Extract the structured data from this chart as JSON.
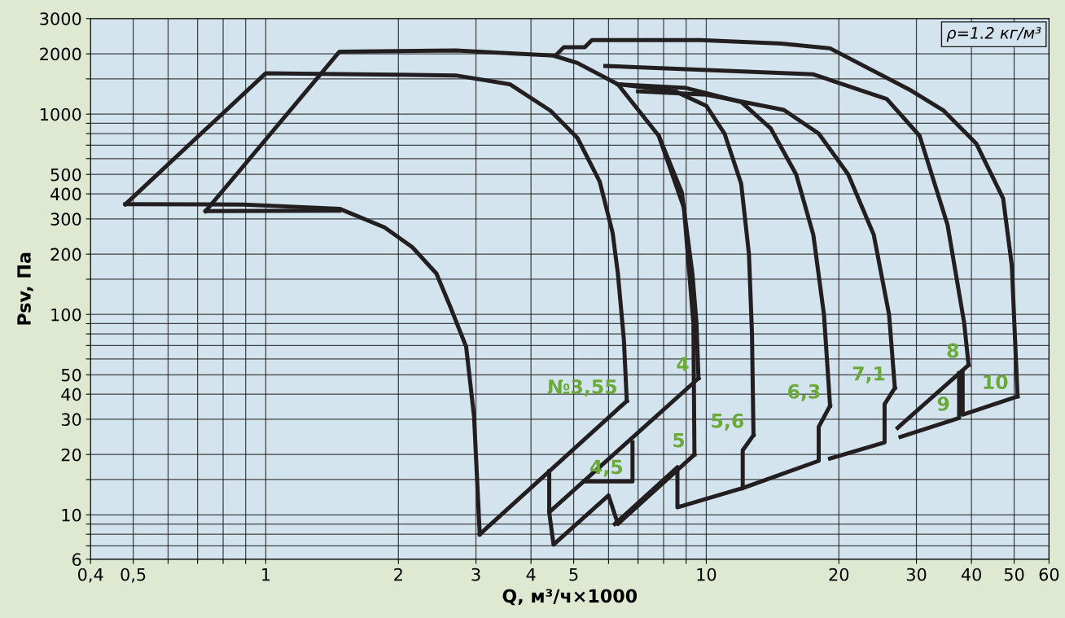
{
  "chart_data": {
    "type": "line",
    "xlabel": "Q, м³/ч×1000",
    "ylabel": "Psv, Па",
    "log": "xy",
    "grid": true,
    "marker": "none",
    "line_style": "solid",
    "xlim": [
      0.4,
      60
    ],
    "ylim": [
      6,
      3000
    ],
    "xticks": [
      {
        "value": 0.4,
        "label": "0,4"
      },
      {
        "value": 0.5,
        "label": "0,5"
      },
      {
        "value": 0.6,
        "label": null
      },
      {
        "value": 0.7,
        "label": null
      },
      {
        "value": 0.8,
        "label": null
      },
      {
        "value": 0.9,
        "label": null
      },
      1,
      2,
      3,
      4,
      5,
      {
        "value": 6,
        "label": null
      },
      {
        "value": 7,
        "label": null
      },
      {
        "value": 8,
        "label": null
      },
      {
        "value": 9,
        "label": null
      },
      10,
      20,
      30,
      40,
      50,
      60
    ],
    "yticks": [
      6,
      {
        "value": 7,
        "label": null
      },
      {
        "value": 8,
        "label": null
      },
      {
        "value": 9,
        "label": null
      },
      10,
      {
        "value": 15,
        "label": null
      },
      20,
      30,
      40,
      50,
      {
        "value": 60,
        "label": null
      },
      {
        "value": 70,
        "label": null
      },
      {
        "value": 80,
        "label": null
      },
      {
        "value": 90,
        "label": null
      },
      100,
      {
        "value": 150,
        "label": null
      },
      200,
      300,
      400,
      500,
      {
        "value": 600,
        "label": null
      },
      {
        "value": 700,
        "label": null
      },
      {
        "value": 800,
        "label": null
      },
      {
        "value": 900,
        "label": null
      },
      1000,
      {
        "value": 1500,
        "label": null
      },
      2000,
      3000
    ],
    "series": [
      {
        "name": "№3,55",
        "color": "#231f20",
        "x": [
          0.48,
          1.0,
          2.7,
          3.58,
          4.43,
          5.1,
          5.73,
          6.13,
          6.3,
          6.5,
          6.6
        ],
        "values": [
          355,
          1600,
          1560,
          1410,
          1040,
          760,
          460,
          255,
          160,
          75,
          37
        ]
      },
      {
        "color": "#231f20",
        "x": [
          3.06,
          6.6
        ],
        "values": [
          8,
          37
        ]
      },
      {
        "color": "#231f20",
        "x": [
          0.48,
          0.89,
          1.47,
          1.86,
          2.15,
          2.44,
          2.62,
          2.85,
          2.97,
          3.06
        ],
        "values": [
          355,
          354,
          337,
          272,
          217,
          160,
          110,
          69,
          31,
          8
        ]
      },
      {
        "name": "4",
        "color": "#231f20",
        "x": [
          0.73,
          1.47,
          2.7,
          4.5,
          5.1,
          6.3,
          7.8,
          8.8,
          9.3,
          9.5,
          9.6
        ],
        "values": [
          328,
          2050,
          2080,
          1960,
          1800,
          1410,
          780,
          407,
          160,
          91,
          48
        ]
      },
      {
        "color": "#231f20",
        "x": [
          0.73,
          1.47
        ],
        "values": [
          328,
          330
        ]
      },
      {
        "color": "#231f20",
        "x": [
          4.4,
          4.4,
          9.6
        ],
        "values": [
          16.5,
          10.3,
          48
        ]
      },
      {
        "name": "4,5",
        "color": "#231f20",
        "x": [
          5.3,
          6.8,
          6.8
        ],
        "values": [
          14.7,
          14.7,
          23
        ]
      },
      {
        "name": "5",
        "color": "#231f20",
        "x": [
          7.8,
          8.9,
          9.35,
          9.4
        ],
        "values": [
          780,
          340,
          90,
          20
        ]
      },
      {
        "color": "#231f20",
        "x": [
          4.4,
          4.5,
          6.0,
          6.3,
          9.4
        ],
        "values": [
          10.3,
          7.1,
          12.5,
          9.0,
          20
        ]
      },
      {
        "name": "5,6",
        "color": "#231f20",
        "x": [
          6.3,
          8.5,
          10,
          11,
          12,
          12.5,
          12.7,
          12.8
        ],
        "values": [
          1410,
          1300,
          1100,
          800,
          450,
          200,
          80,
          25
        ]
      },
      {
        "color": "#231f20",
        "x": [
          6.2,
          8.6,
          8.6,
          12.1,
          12.1,
          12.8
        ],
        "values": [
          9.0,
          17.3,
          10.9,
          13.6,
          21,
          25
        ]
      },
      {
        "name": "6,3",
        "color": "#231f20",
        "x": [
          6.3,
          9,
          12,
          14,
          16,
          17.5,
          18.5,
          19.1
        ],
        "values": [
          1410,
          1350,
          1150,
          850,
          500,
          250,
          100,
          35
        ]
      },
      {
        "color": "#231f20",
        "x": [
          12.1,
          18,
          18,
          19.1
        ],
        "values": [
          13.6,
          18.6,
          27.5,
          35
        ]
      },
      {
        "name": "7,1",
        "color": "#231f20",
        "x": [
          7,
          10,
          15,
          18,
          21,
          24,
          26,
          26.8
        ],
        "values": [
          1300,
          1250,
          1050,
          800,
          500,
          250,
          100,
          43
        ]
      },
      {
        "color": "#231f20",
        "x": [
          19.1,
          25.4,
          25.4,
          26.8
        ],
        "values": [
          19.1,
          23,
          35.7,
          43
        ]
      },
      {
        "name": "8",
        "color": "#231f20",
        "x": [
          5.9,
          17.5,
          25.7,
          30.5,
          35.3,
          38.5,
          39.4
        ],
        "values": [
          1740,
          1580,
          1190,
          780,
          280,
          91,
          56
        ]
      },
      {
        "color": "#231f20",
        "x": [
          27.2,
          39.4
        ],
        "values": [
          27.2,
          56
        ]
      },
      {
        "name": "9",
        "color": "#231f20",
        "x": [
          27.6,
          37.5,
          37.5
        ],
        "values": [
          24.5,
          30.4,
          51
        ]
      },
      {
        "name": "10",
        "color": "#231f20",
        "x": [
          4.55,
          4.75,
          5.3,
          5.5,
          9.7,
          14.8,
          19.1,
          29.2,
          34.6,
          41,
          47.2,
          49.4,
          50.9
        ],
        "values": [
          1960,
          2160,
          2160,
          2340,
          2340,
          2250,
          2130,
          1310,
          1040,
          714,
          380,
          175,
          39
        ]
      },
      {
        "color": "#231f20",
        "x": [
          38.2,
          38.2,
          50.9
        ],
        "values": [
          52,
          31.6,
          39
        ]
      }
    ],
    "annotations": [
      "ρ=1.2 кг/м³"
    ]
  }
}
